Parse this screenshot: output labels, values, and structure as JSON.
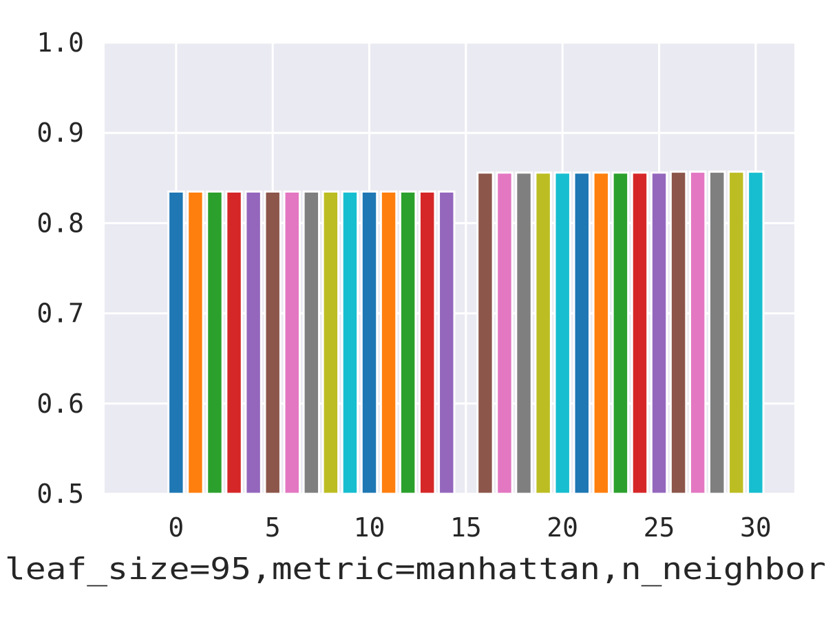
{
  "chart_data": {
    "type": "bar",
    "title": "",
    "xlabel": "leaf_size=95,metric=manhattan,n_neighbor",
    "ylabel": "",
    "xlim": [
      -3.7,
      32
    ],
    "ylim": [
      0.5,
      1.0
    ],
    "x_ticks": [
      0,
      5,
      10,
      15,
      20,
      25,
      30
    ],
    "x_tick_labels": [
      "0",
      "5",
      "10",
      "15",
      "20",
      "25",
      "30"
    ],
    "y_ticks": [
      0.5,
      0.6,
      0.7,
      0.8,
      0.9,
      1.0
    ],
    "y_tick_labels": [
      "0.5",
      "0.6",
      "0.7",
      "0.8",
      "0.9",
      "1.0"
    ],
    "grid": true,
    "background_color": "#eaeaf2",
    "grid_color": "#ffffff",
    "palette": [
      "#1f77b4",
      "#ff7f0e",
      "#2ca02c",
      "#d62728",
      "#9467bd",
      "#8c564b",
      "#e377c2",
      "#7f7f7f",
      "#bcbd22",
      "#17becf"
    ],
    "x": [
      0,
      1,
      2,
      3,
      4,
      5,
      6,
      7,
      8,
      9,
      10,
      11,
      12,
      13,
      14,
      16,
      17,
      18,
      19,
      20,
      21,
      22,
      23,
      24,
      25,
      26,
      27,
      28,
      29,
      30
    ],
    "values": [
      0.835,
      0.835,
      0.835,
      0.835,
      0.835,
      0.835,
      0.835,
      0.835,
      0.835,
      0.835,
      0.835,
      0.835,
      0.835,
      0.835,
      0.835,
      0.856,
      0.856,
      0.856,
      0.856,
      0.856,
      0.856,
      0.856,
      0.856,
      0.856,
      0.856,
      0.857,
      0.857,
      0.857,
      0.857,
      0.857
    ]
  }
}
